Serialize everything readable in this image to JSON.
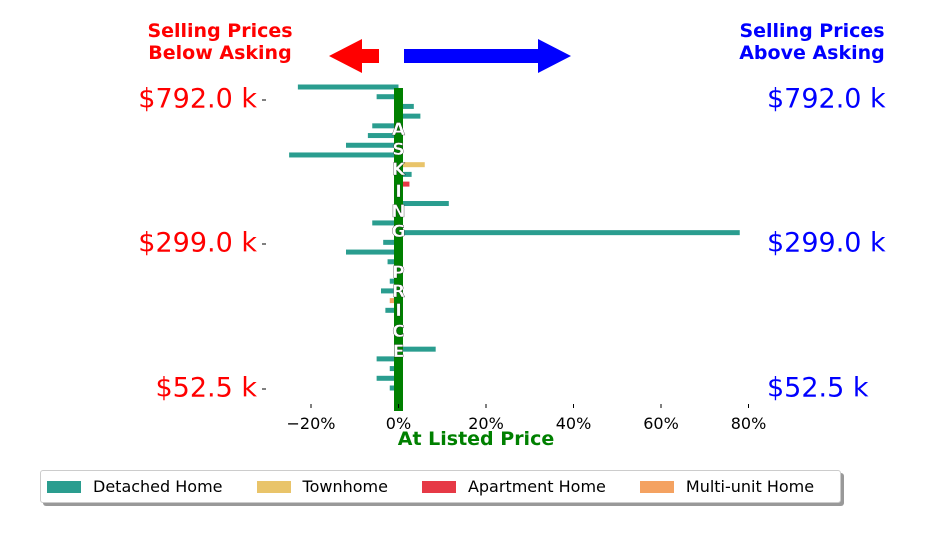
{
  "chart_data": {
    "type": "bar",
    "orientation": "horizontal",
    "header_left": "Selling Prices\nBelow Asking",
    "header_right": "Selling Prices\nAbove Asking",
    "xlabel": "At Listed Price",
    "center_label": "ASKING PRICE",
    "x_ticks": [
      "−20%",
      "0%",
      "20%",
      "40%",
      "60%",
      "80%"
    ],
    "x_tick_values": [
      -20,
      0,
      20,
      40,
      60,
      80
    ],
    "xlim": [
      -25,
      80
    ],
    "y_tick_labels": [
      "$792.0 k",
      "$299.0 k",
      "$52.5 k"
    ],
    "colors": {
      "left_labels": "#ff0000",
      "right_labels": "#0000ff",
      "center_line": "#008000",
      "xlabel": "#008000"
    },
    "legend_position": "lower-center",
    "series": [
      {
        "name": "Detached Home",
        "color": "#2a9d8f"
      },
      {
        "name": "Townhome",
        "color": "#e9c46a"
      },
      {
        "name": "Apartment Home",
        "color": "#e63946"
      },
      {
        "name": "Multi-unit Home",
        "color": "#f4a261"
      }
    ],
    "bars": [
      {
        "series": "Detached Home",
        "value": -2
      },
      {
        "series": "Detached Home",
        "value": -5
      },
      {
        "series": "Detached Home",
        "value": -2
      },
      {
        "series": "Detached Home",
        "value": -5
      },
      {
        "series": "Detached Home",
        "value": 8.5
      },
      {
        "series": "Detached Home",
        "value": -1
      },
      {
        "series": "Detached Home",
        "value": 0.5
      },
      {
        "series": "Detached Home",
        "value": 0.5
      },
      {
        "series": "Detached Home",
        "value": -3
      },
      {
        "series": "Multi-unit Home",
        "value": -2
      },
      {
        "series": "Detached Home",
        "value": -4
      },
      {
        "series": "Detached Home",
        "value": -2
      },
      {
        "series": "Detached Home",
        "value": -1
      },
      {
        "series": "Detached Home",
        "value": -2.5
      },
      {
        "series": "Detached Home",
        "value": -12
      },
      {
        "series": "Detached Home",
        "value": -3.5
      },
      {
        "series": "Detached Home",
        "value": 78
      },
      {
        "series": "Detached Home",
        "value": -6
      },
      {
        "series": "Detached Home",
        "value": -1
      },
      {
        "series": "Detached Home",
        "value": 11.5
      },
      {
        "series": "Apartment Home",
        "value": 0.5
      },
      {
        "series": "Apartment Home",
        "value": 2.5
      },
      {
        "series": "Detached Home",
        "value": 3
      },
      {
        "series": "Townhome",
        "value": 6
      },
      {
        "series": "Detached Home",
        "value": -25
      },
      {
        "series": "Detached Home",
        "value": -12
      },
      {
        "series": "Detached Home",
        "value": -7
      },
      {
        "series": "Detached Home",
        "value": -6
      },
      {
        "series": "Detached Home",
        "value": 5
      },
      {
        "series": "Detached Home",
        "value": 3.5
      },
      {
        "series": "Detached Home",
        "value": -5
      },
      {
        "series": "Detached Home",
        "value": -23
      }
    ]
  }
}
